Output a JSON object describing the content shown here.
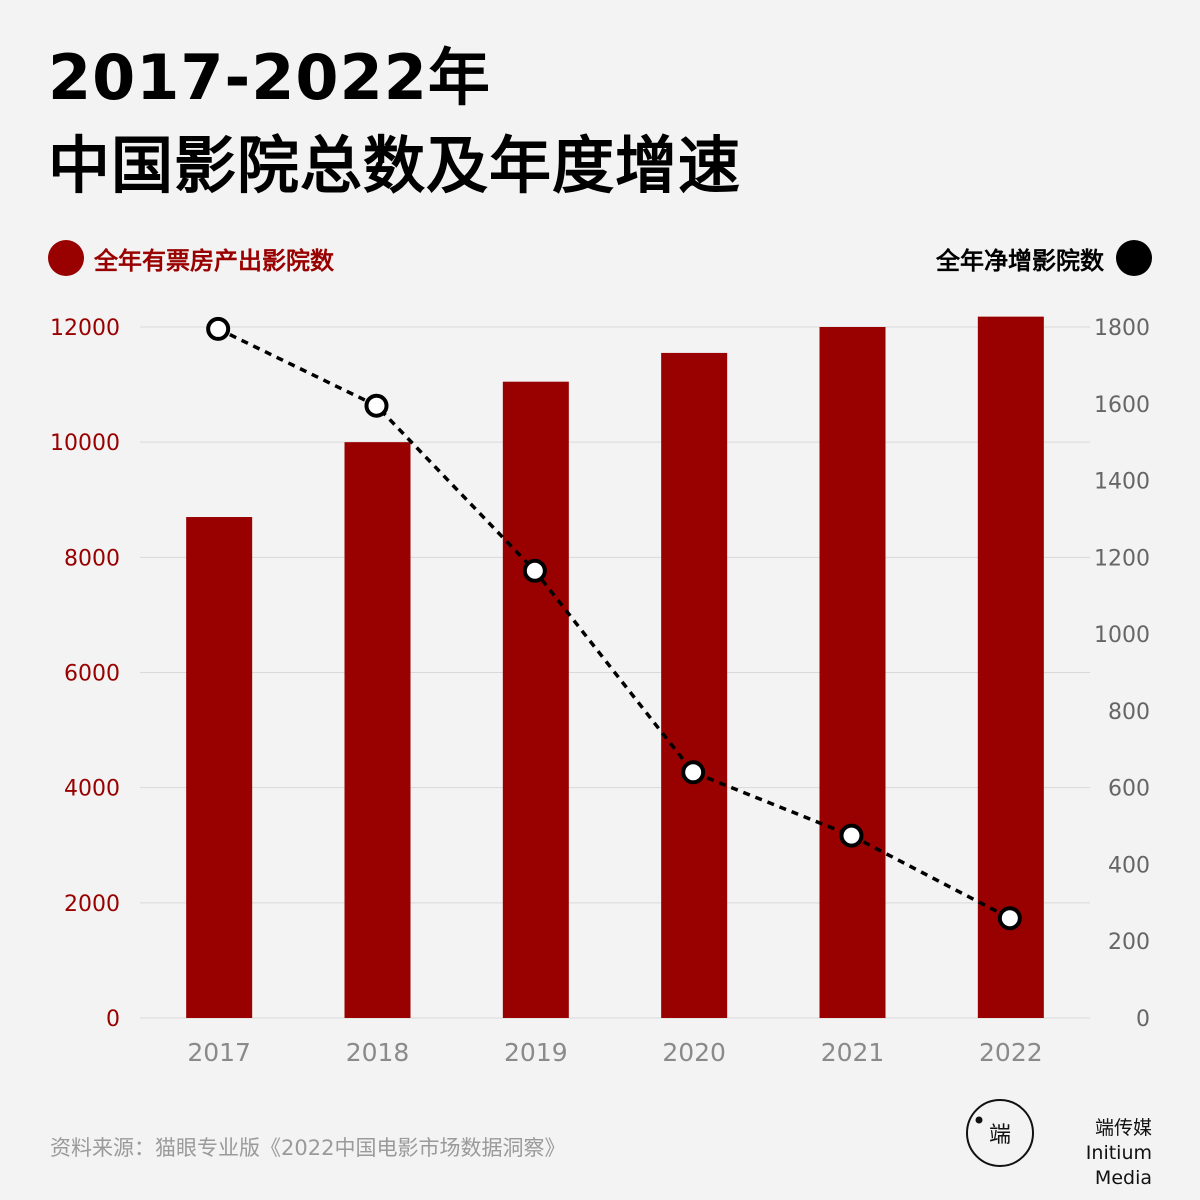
{
  "title": {
    "line1": "2017-2022年",
    "line2": "中国影院总数及年度增速"
  },
  "legend": {
    "left_label": "全年有票房产出影院数",
    "right_label": "全年净增影院数"
  },
  "colors": {
    "bar": "#990000",
    "line": "#000000",
    "left_axis_text": "#990000",
    "right_axis_text": "#666666",
    "x_axis_text": "#8a8a8a",
    "grid": "#d9d9d9"
  },
  "chart_data": {
    "type": "bar",
    "categories": [
      "2017",
      "2018",
      "2019",
      "2020",
      "2021",
      "2022"
    ],
    "series": [
      {
        "name": "全年有票房产出影院数",
        "type": "bar",
        "axis": "left",
        "values": [
          8700,
          10000,
          11050,
          11550,
          12000,
          12180
        ]
      },
      {
        "name": "全年净增影院数",
        "type": "line",
        "axis": "right",
        "style": "dashed",
        "values": [
          1795,
          1595,
          1165,
          640,
          475,
          260
        ]
      }
    ],
    "left_axis": {
      "ylim": [
        0,
        12000
      ],
      "ticks": [
        0,
        2000,
        4000,
        6000,
        8000,
        10000,
        12000
      ]
    },
    "right_axis": {
      "ylim": [
        0,
        1800
      ],
      "ticks": [
        0,
        200,
        400,
        600,
        800,
        1000,
        1200,
        1400,
        1600,
        1800
      ]
    },
    "grid": true
  },
  "source": "资料来源：猫眼专业版《2022中国电影市场数据洞察》",
  "brand": {
    "logo_glyph": "端",
    "name_cn": "端传媒",
    "name_en": "Initium Media"
  }
}
